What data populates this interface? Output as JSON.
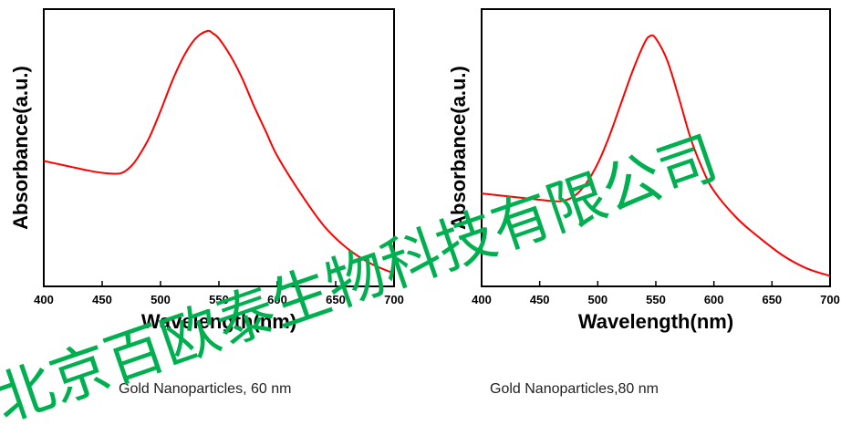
{
  "chart_data": [
    {
      "type": "line",
      "title": "",
      "xlabel": "Wavelength(nm)",
      "ylabel": "Absorbance(a.u.)",
      "xlim": [
        400,
        700
      ],
      "ylim": [
        0,
        1
      ],
      "xticks": [
        400,
        450,
        500,
        550,
        600,
        650,
        700
      ],
      "yticks": [],
      "grid": false,
      "line_color": "#ff0000",
      "series": [
        {
          "x": [
            400,
            420,
            440,
            455,
            465,
            470,
            475,
            480,
            490,
            500,
            510,
            520,
            530,
            540,
            545,
            550,
            560,
            570,
            580,
            590,
            600,
            620,
            640,
            660,
            680,
            700
          ],
          "values": [
            0.48,
            0.46,
            0.44,
            0.43,
            0.43,
            0.44,
            0.46,
            0.49,
            0.57,
            0.68,
            0.8,
            0.9,
            0.97,
            1.0,
            0.99,
            0.97,
            0.9,
            0.81,
            0.7,
            0.6,
            0.5,
            0.35,
            0.22,
            0.13,
            0.07,
            0.03
          ]
        }
      ],
      "caption": "Gold Nanoparticles, 60 nm"
    },
    {
      "type": "line",
      "title": "",
      "xlabel": "Wavelength(nm)",
      "ylabel": "Absorbance(a.u.)",
      "xlim": [
        400,
        700
      ],
      "ylim": [
        0,
        1
      ],
      "xticks": [
        400,
        450,
        500,
        550,
        600,
        650,
        700
      ],
      "yticks": [],
      "grid": false,
      "line_color": "#ff0000",
      "series": [
        {
          "x": [
            400,
            420,
            440,
            460,
            470,
            480,
            490,
            500,
            510,
            520,
            530,
            540,
            545,
            550,
            560,
            570,
            580,
            590,
            600,
            620,
            640,
            660,
            680,
            700
          ],
          "values": [
            0.35,
            0.34,
            0.33,
            0.32,
            0.32,
            0.34,
            0.39,
            0.47,
            0.58,
            0.71,
            0.84,
            0.95,
            0.98,
            0.97,
            0.88,
            0.73,
            0.57,
            0.45,
            0.36,
            0.25,
            0.17,
            0.1,
            0.05,
            0.02
          ]
        }
      ],
      "caption": "Gold Nanoparticles,80 nm"
    }
  ],
  "watermark": "北京百欧泰生物科技有限公司",
  "colors": {
    "line": "#ff0000",
    "watermark": "#00b050",
    "axis": "#000000"
  }
}
